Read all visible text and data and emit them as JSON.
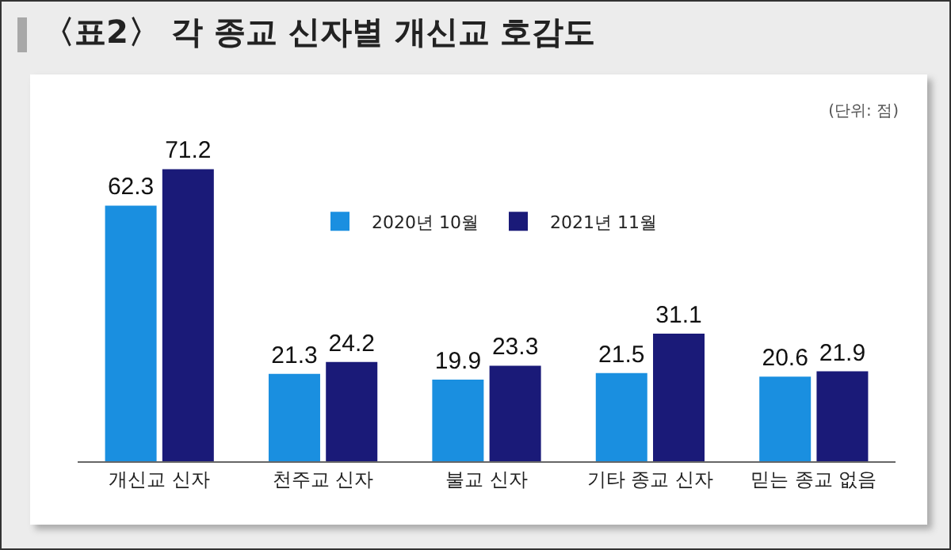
{
  "chart_data": {
    "type": "bar",
    "title": "〈표2〉 각 종교 신자별 개신교 호감도",
    "annotations": [
      "(단위: 점)"
    ],
    "categories": [
      "개신교 신자",
      "천주교 신자",
      "불교 신자",
      "기타 종교 신자",
      "믿는 종교 없음"
    ],
    "series": [
      {
        "name": "2020년 10월",
        "color": "#1a8fe0",
        "values": [
          62.3,
          21.3,
          19.9,
          21.5,
          20.6
        ]
      },
      {
        "name": "2021년 11월",
        "color": "#1a1a78",
        "values": [
          71.2,
          24.2,
          23.3,
          31.1,
          21.9
        ]
      }
    ],
    "data_labels": true,
    "legend": "top",
    "grid": false
  }
}
